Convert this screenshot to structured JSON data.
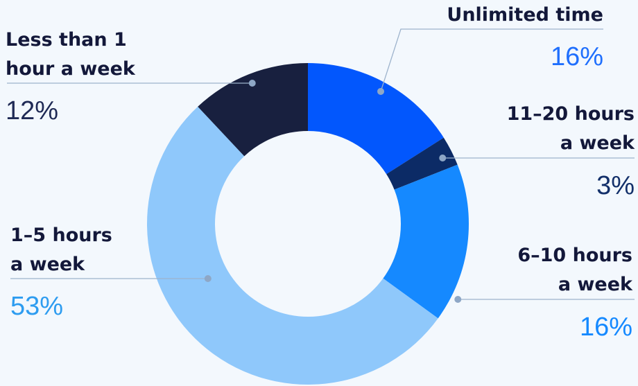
{
  "chart_data": {
    "type": "donut",
    "categories": [
      "Unlimited time",
      "11–20 hours\na week",
      "6–10 hours\na week",
      "1–5 hours\na week",
      "Less than 1\nhour a week"
    ],
    "values": [
      16,
      3,
      16,
      53,
      12
    ],
    "value_labels": [
      "16%",
      "3%",
      "16%",
      "53%",
      "12%"
    ],
    "colors": [
      "#0257fd",
      "#0c2b66",
      "#1589ff",
      "#8fc8fb",
      "#18203f"
    ]
  }
}
